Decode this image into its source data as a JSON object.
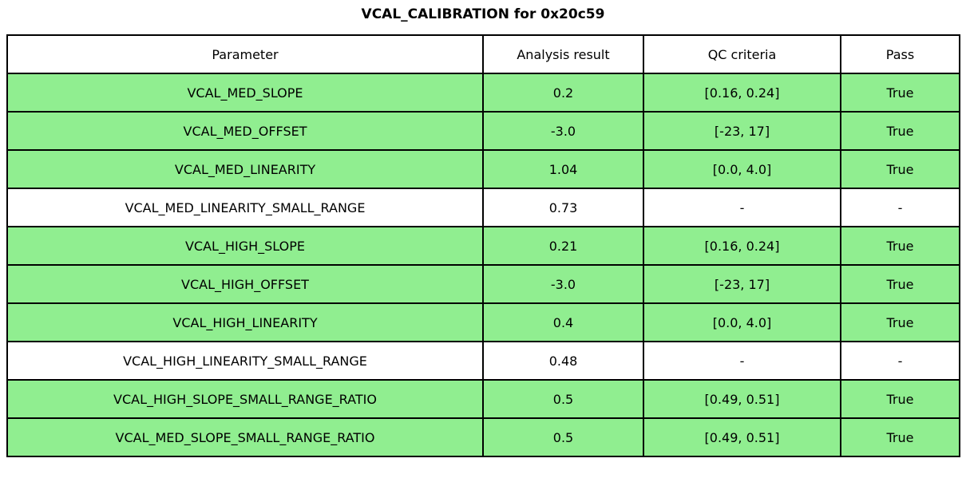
{
  "title": "VCAL_CALIBRATION for 0x20c59",
  "colors": {
    "pass_row_green": "#90EE90",
    "neutral_row_white": "#FFFFFF",
    "border_black": "#000000"
  },
  "table": {
    "headers": [
      "Parameter",
      "Analysis result",
      "QC criteria",
      "Pass"
    ],
    "rows": [
      {
        "parameter": "VCAL_MED_SLOPE",
        "result": "0.2",
        "criteria": "[0.16, 0.24]",
        "pass": "True",
        "highlight": true
      },
      {
        "parameter": "VCAL_MED_OFFSET",
        "result": "-3.0",
        "criteria": "[-23, 17]",
        "pass": "True",
        "highlight": true
      },
      {
        "parameter": "VCAL_MED_LINEARITY",
        "result": "1.04",
        "criteria": "[0.0, 4.0]",
        "pass": "True",
        "highlight": true
      },
      {
        "parameter": "VCAL_MED_LINEARITY_SMALL_RANGE",
        "result": "0.73",
        "criteria": "-",
        "pass": "-",
        "highlight": false
      },
      {
        "parameter": "VCAL_HIGH_SLOPE",
        "result": "0.21",
        "criteria": "[0.16, 0.24]",
        "pass": "True",
        "highlight": true
      },
      {
        "parameter": "VCAL_HIGH_OFFSET",
        "result": "-3.0",
        "criteria": "[-23, 17]",
        "pass": "True",
        "highlight": true
      },
      {
        "parameter": "VCAL_HIGH_LINEARITY",
        "result": "0.4",
        "criteria": "[0.0, 4.0]",
        "pass": "True",
        "highlight": true
      },
      {
        "parameter": "VCAL_HIGH_LINEARITY_SMALL_RANGE",
        "result": "0.48",
        "criteria": "-",
        "pass": "-",
        "highlight": false
      },
      {
        "parameter": "VCAL_HIGH_SLOPE_SMALL_RANGE_RATIO",
        "result": "0.5",
        "criteria": "[0.49, 0.51]",
        "pass": "True",
        "highlight": true
      },
      {
        "parameter": "VCAL_MED_SLOPE_SMALL_RANGE_RATIO",
        "result": "0.5",
        "criteria": "[0.49, 0.51]",
        "pass": "True",
        "highlight": true
      }
    ]
  }
}
